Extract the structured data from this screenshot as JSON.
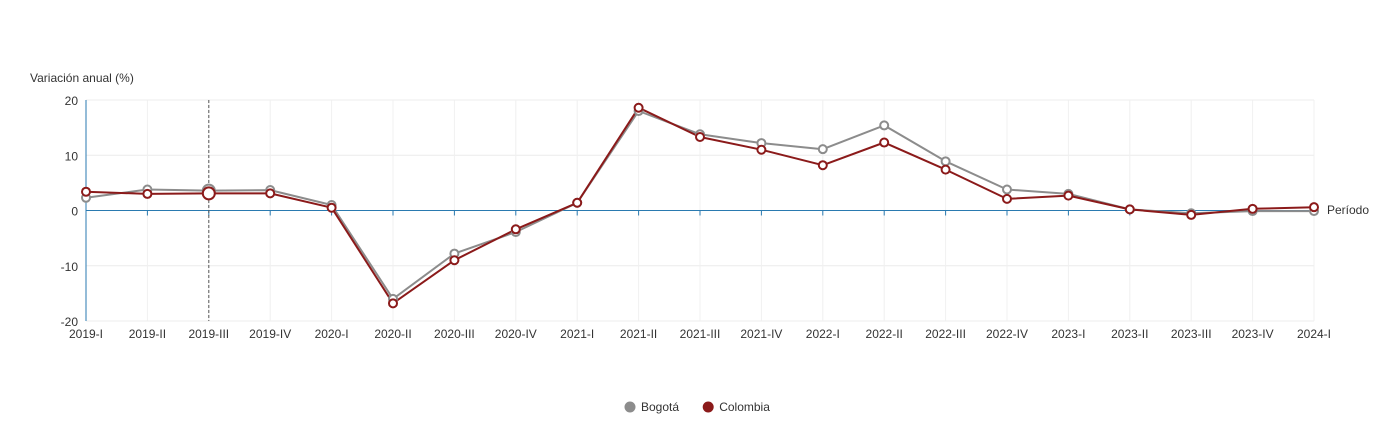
{
  "chart_data": {
    "type": "line",
    "ylabel": "Variación anual (%)",
    "xlabel": "Período",
    "ylim": [
      -20,
      20
    ],
    "yticks": [
      20,
      10,
      0,
      -10,
      -20
    ],
    "categories": [
      "2019-I",
      "2019-II",
      "2019-III",
      "2019-IV",
      "2020-I",
      "2020-II",
      "2020-III",
      "2020-IV",
      "2021-I",
      "2021-II",
      "2021-III",
      "2021-IV",
      "2022-I",
      "2022-II",
      "2022-III",
      "2022-IV",
      "2023-I",
      "2023-II",
      "2023-III",
      "2023-IV",
      "2024-I"
    ],
    "highlight_category": "2019-III",
    "grid": true,
    "legend_position": "bottom",
    "series": [
      {
        "name": "Bogotá",
        "color": "#8c8c8c",
        "values": [
          2.3,
          3.8,
          3.6,
          3.7,
          1.0,
          -16.0,
          -7.8,
          -3.9,
          1.4,
          18.0,
          13.8,
          12.2,
          11.1,
          15.4,
          8.9,
          3.8,
          3.0,
          0.2,
          -0.5,
          -0.1,
          -0.1
        ]
      },
      {
        "name": "Colombia",
        "color": "#8b1a1a",
        "values": [
          3.4,
          3.0,
          3.1,
          3.1,
          0.5,
          -16.8,
          -9.0,
          -3.4,
          1.4,
          18.6,
          13.3,
          11.0,
          8.2,
          12.3,
          7.4,
          2.1,
          2.7,
          0.2,
          -0.8,
          0.3,
          0.6
        ]
      }
    ]
  }
}
